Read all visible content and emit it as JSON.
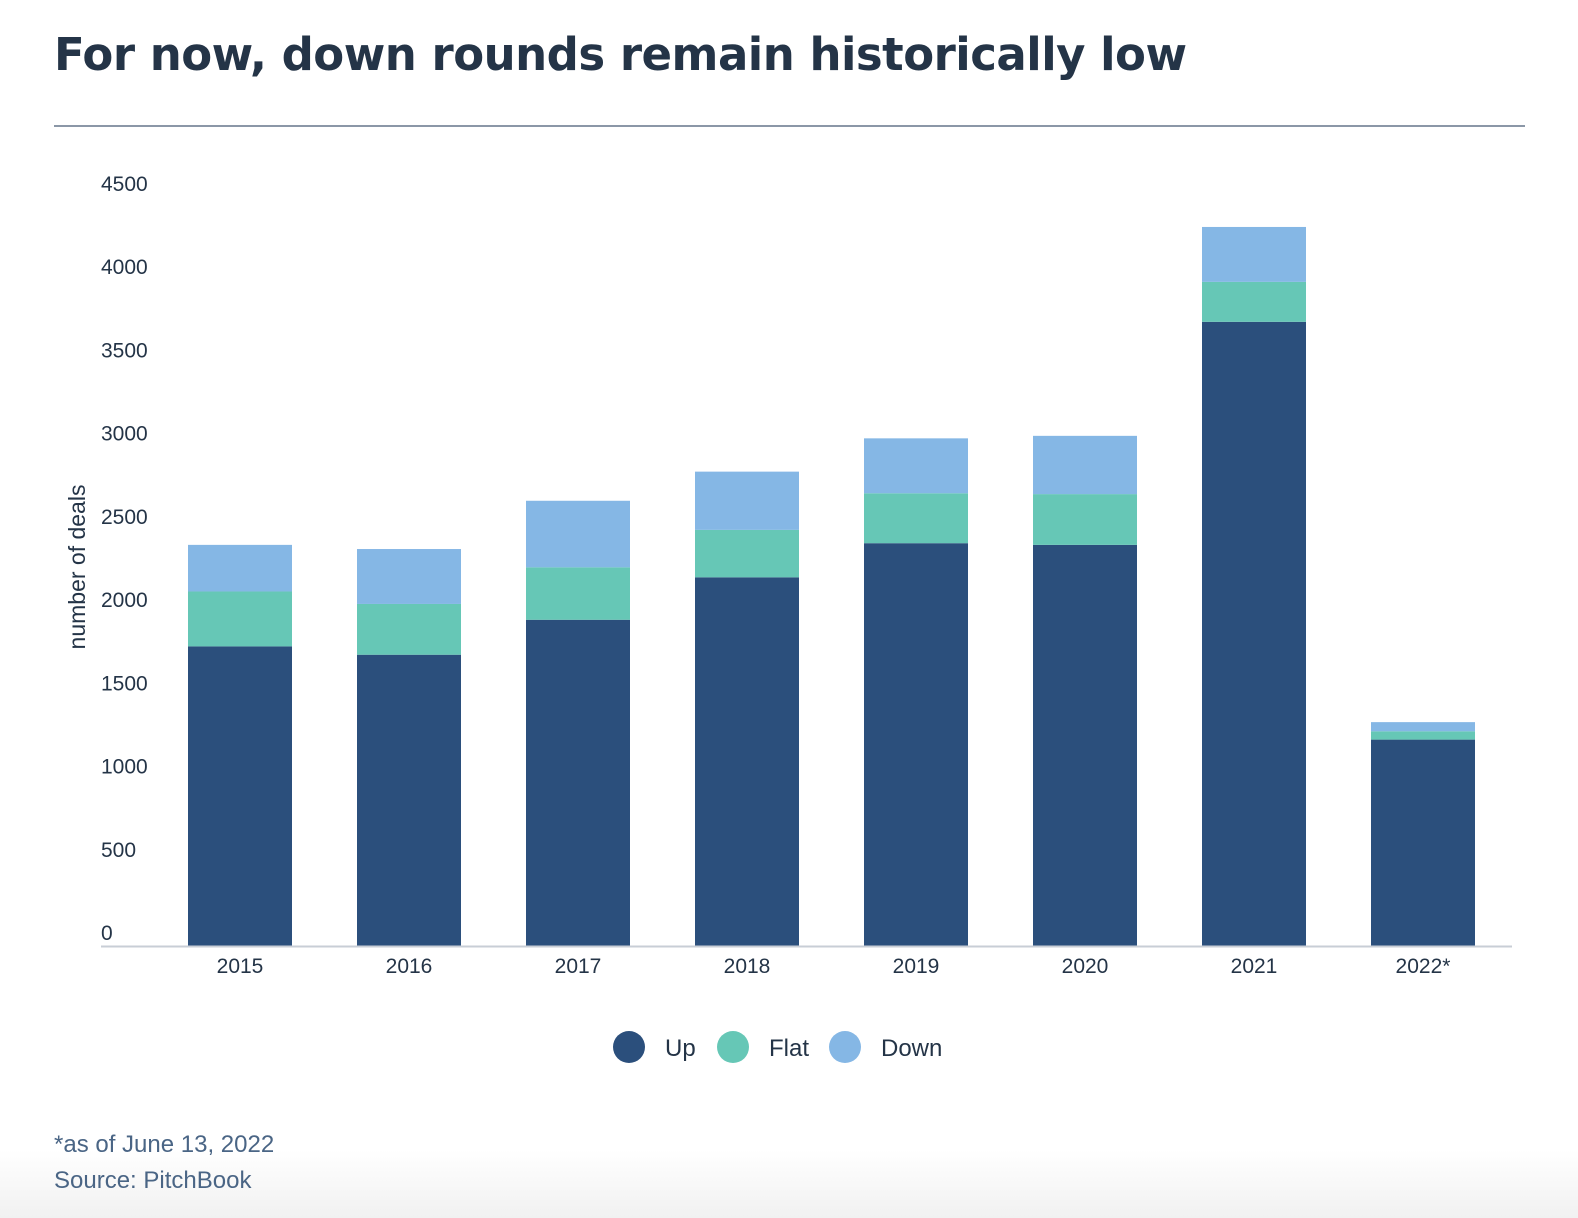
{
  "title": "For now, down rounds remain historically low",
  "footnote": "*as of June 13, 2022",
  "source": "Source: PitchBook",
  "chart_data": {
    "type": "bar",
    "stacked": true,
    "title": "For now, down rounds remain historically low",
    "xlabel": "",
    "ylabel": "number of deals",
    "ylim": [
      0,
      4500
    ],
    "yticks": [
      0,
      500,
      1000,
      1500,
      2000,
      2500,
      3000,
      3500,
      4000,
      4500
    ],
    "grid": false,
    "legend_position": "bottom-center",
    "categories": [
      "2015",
      "2016",
      "2017",
      "2018",
      "2019",
      "2020",
      "2021",
      "2022*"
    ],
    "series": [
      {
        "name": "Up",
        "color": "#2b4f7c",
        "values": [
          1800,
          1750,
          1960,
          2215,
          2420,
          2410,
          3750,
          1240
        ]
      },
      {
        "name": "Flat",
        "color": "#66c7b6",
        "values": [
          330,
          305,
          315,
          285,
          300,
          305,
          240,
          50
        ]
      },
      {
        "name": "Down",
        "color": "#85b7e5",
        "values": [
          280,
          330,
          400,
          350,
          330,
          350,
          330,
          55
        ]
      }
    ]
  }
}
